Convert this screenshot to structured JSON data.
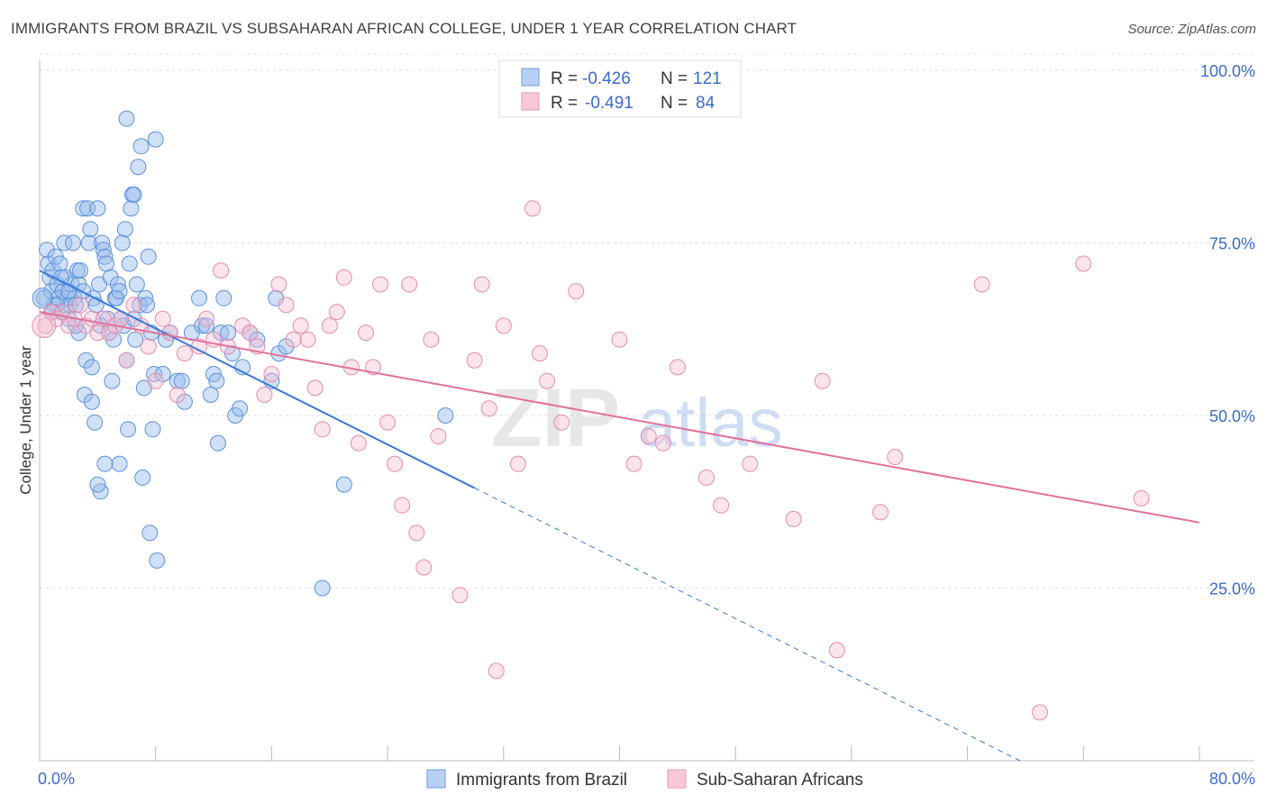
{
  "header": {
    "title": "IMMIGRANTS FROM BRAZIL VS SUBSAHARAN AFRICAN COLLEGE, UNDER 1 YEAR CORRELATION CHART",
    "source": "Source: ZipAtlas.com"
  },
  "watermark": {
    "zip": "ZIP",
    "atlas": "atlas"
  },
  "legend_top": {
    "rows": [
      {
        "r_label": "R =",
        "r_value": "-0.426",
        "n_label": "N =",
        "n_value": "121"
      },
      {
        "r_label": "R =",
        "r_value": "-0.491",
        "n_label": "N =",
        "n_value": "84"
      }
    ]
  },
  "colors": {
    "blue": "#3a78d4",
    "blue_fill": "#a9c6f0",
    "pink": "#e0729a",
    "pink_fill": "#f5bcd0",
    "axis_text": "#3a6cc8"
  },
  "chart_data": {
    "type": "scatter",
    "title": "IMMIGRANTS FROM BRAZIL VS SUBSAHARAN AFRICAN COLLEGE, UNDER 1 YEAR CORRELATION CHART",
    "xlabel": "",
    "ylabel": "College, Under 1 year",
    "xlim": [
      0,
      80
    ],
    "ylim": [
      0,
      100
    ],
    "x_tick_labels": [
      "0.0%",
      "80.0%"
    ],
    "y_tick_labels": [
      "100.0%",
      "75.0%",
      "50.0%",
      "25.0%"
    ],
    "y_ticks": [
      100,
      75,
      50,
      25
    ],
    "grid": true,
    "legend_position": "bottom",
    "series": [
      {
        "name": "Immigrants from Brazil",
        "color": "#3a78d4",
        "trend": {
          "x0": 0,
          "y0": 71.0,
          "x1": 30,
          "y1": 39.5,
          "dashed_to_x": 80
        },
        "points": [
          [
            0.3,
            67
          ],
          [
            0.5,
            74
          ],
          [
            0.6,
            72
          ],
          [
            0.7,
            70
          ],
          [
            0.8,
            68
          ],
          [
            0.9,
            71
          ],
          [
            1.0,
            66
          ],
          [
            1.1,
            73
          ],
          [
            1.2,
            69
          ],
          [
            1.3,
            67
          ],
          [
            1.4,
            72
          ],
          [
            1.5,
            65
          ],
          [
            1.6,
            68
          ],
          [
            1.7,
            75
          ],
          [
            1.8,
            70
          ],
          [
            1.9,
            67
          ],
          [
            2.0,
            64
          ],
          [
            2.1,
            66
          ],
          [
            2.2,
            69
          ],
          [
            2.3,
            75
          ],
          [
            2.4,
            67
          ],
          [
            2.5,
            63
          ],
          [
            2.6,
            71
          ],
          [
            2.7,
            69
          ],
          [
            2.8,
            71
          ],
          [
            3.0,
            80
          ],
          [
            3.1,
            53
          ],
          [
            3.2,
            58
          ],
          [
            3.3,
            80
          ],
          [
            3.4,
            75
          ],
          [
            3.5,
            77
          ],
          [
            3.6,
            57
          ],
          [
            3.7,
            67
          ],
          [
            3.8,
            49
          ],
          [
            3.9,
            66
          ],
          [
            4.0,
            80
          ],
          [
            4.1,
            69
          ],
          [
            4.2,
            63
          ],
          [
            4.3,
            75
          ],
          [
            4.4,
            74
          ],
          [
            4.5,
            73
          ],
          [
            4.6,
            72
          ],
          [
            4.7,
            64
          ],
          [
            4.8,
            62
          ],
          [
            4.9,
            70
          ],
          [
            5.0,
            55
          ],
          [
            5.1,
            61
          ],
          [
            5.2,
            67
          ],
          [
            5.3,
            67
          ],
          [
            5.4,
            69
          ],
          [
            5.5,
            68
          ],
          [
            5.6,
            64
          ],
          [
            5.7,
            75
          ],
          [
            5.8,
            63
          ],
          [
            5.9,
            77
          ],
          [
            6.0,
            58
          ],
          [
            6.1,
            48
          ],
          [
            6.2,
            72
          ],
          [
            6.3,
            80
          ],
          [
            6.4,
            82
          ],
          [
            6.5,
            82
          ],
          [
            6.6,
            61
          ],
          [
            6.7,
            69
          ],
          [
            6.8,
            86
          ],
          [
            6.9,
            66
          ],
          [
            7.0,
            89
          ],
          [
            7.1,
            41
          ],
          [
            7.2,
            54
          ],
          [
            7.3,
            67
          ],
          [
            7.4,
            66
          ],
          [
            7.5,
            73
          ],
          [
            7.6,
            33
          ],
          [
            7.7,
            62
          ],
          [
            7.8,
            48
          ],
          [
            7.9,
            56
          ],
          [
            8.0,
            90
          ],
          [
            8.1,
            29
          ],
          [
            8.5,
            56
          ],
          [
            8.7,
            61
          ],
          [
            9.0,
            62
          ],
          [
            9.5,
            55
          ],
          [
            9.8,
            55
          ],
          [
            10.0,
            52
          ],
          [
            10.5,
            62
          ],
          [
            11.0,
            67
          ],
          [
            11.2,
            63
          ],
          [
            11.5,
            63
          ],
          [
            11.8,
            53
          ],
          [
            12.0,
            56
          ],
          [
            12.2,
            55
          ],
          [
            12.3,
            46
          ],
          [
            12.5,
            62
          ],
          [
            12.7,
            67
          ],
          [
            13.0,
            62
          ],
          [
            13.3,
            59
          ],
          [
            13.5,
            50
          ],
          [
            13.8,
            51
          ],
          [
            14.0,
            57
          ],
          [
            14.5,
            62
          ],
          [
            15.0,
            61
          ],
          [
            16.0,
            55
          ],
          [
            16.3,
            67
          ],
          [
            16.5,
            59
          ],
          [
            17.0,
            60
          ],
          [
            19.5,
            25
          ],
          [
            21.0,
            40
          ],
          [
            28.0,
            50
          ],
          [
            5.5,
            43
          ],
          [
            4.5,
            43
          ],
          [
            4.2,
            39
          ],
          [
            4.0,
            40
          ],
          [
            3.6,
            52
          ],
          [
            2.7,
            62
          ],
          [
            1.2,
            66
          ],
          [
            0.9,
            65
          ],
          [
            1.5,
            70
          ],
          [
            2.0,
            68
          ],
          [
            2.5,
            66
          ],
          [
            3.0,
            68
          ],
          [
            6.0,
            93
          ],
          [
            6.5,
            64
          ]
        ]
      },
      {
        "name": "Sub-Saharan Africans",
        "color": "#e0729a",
        "trend": {
          "x0": 0,
          "y0": 65.0,
          "x1": 80,
          "y1": 34.5
        },
        "points": [
          [
            0.4,
            63
          ],
          [
            0.8,
            65
          ],
          [
            1.2,
            64
          ],
          [
            1.6,
            65
          ],
          [
            2.0,
            63
          ],
          [
            2.4,
            64
          ],
          [
            2.8,
            66
          ],
          [
            3.2,
            63
          ],
          [
            3.6,
            64
          ],
          [
            4.0,
            62
          ],
          [
            4.4,
            64
          ],
          [
            4.8,
            62
          ],
          [
            5.2,
            63
          ],
          [
            5.6,
            64
          ],
          [
            6.0,
            58
          ],
          [
            6.5,
            66
          ],
          [
            7.0,
            63
          ],
          [
            7.5,
            60
          ],
          [
            8.0,
            55
          ],
          [
            8.5,
            64
          ],
          [
            9.0,
            62
          ],
          [
            9.5,
            53
          ],
          [
            10.0,
            59
          ],
          [
            11.0,
            60
          ],
          [
            11.5,
            64
          ],
          [
            12.0,
            61
          ],
          [
            12.5,
            71
          ],
          [
            13.0,
            60
          ],
          [
            14.0,
            63
          ],
          [
            14.5,
            62
          ],
          [
            15.0,
            60
          ],
          [
            15.5,
            53
          ],
          [
            16.0,
            56
          ],
          [
            16.5,
            69
          ],
          [
            17.0,
            66
          ],
          [
            17.5,
            61
          ],
          [
            18.0,
            63
          ],
          [
            18.5,
            61
          ],
          [
            19.0,
            54
          ],
          [
            19.5,
            48
          ],
          [
            20.0,
            63
          ],
          [
            20.5,
            65
          ],
          [
            21.0,
            70
          ],
          [
            21.5,
            57
          ],
          [
            22.0,
            46
          ],
          [
            22.5,
            62
          ],
          [
            23.0,
            57
          ],
          [
            23.5,
            69
          ],
          [
            24.0,
            49
          ],
          [
            24.5,
            43
          ],
          [
            25.0,
            37
          ],
          [
            25.5,
            69
          ],
          [
            26.0,
            33
          ],
          [
            26.5,
            28
          ],
          [
            27.0,
            61
          ],
          [
            27.5,
            47
          ],
          [
            29.0,
            24
          ],
          [
            30.0,
            58
          ],
          [
            30.5,
            69
          ],
          [
            31.0,
            51
          ],
          [
            31.5,
            13
          ],
          [
            32.0,
            63
          ],
          [
            33.0,
            43
          ],
          [
            34.0,
            80
          ],
          [
            34.5,
            59
          ],
          [
            35.0,
            55
          ],
          [
            36.0,
            49
          ],
          [
            37.0,
            68
          ],
          [
            40.0,
            61
          ],
          [
            41.0,
            43
          ],
          [
            42.0,
            47
          ],
          [
            43.0,
            46
          ],
          [
            44.0,
            57
          ],
          [
            46.0,
            41
          ],
          [
            47.0,
            37
          ],
          [
            49.0,
            43
          ],
          [
            52.0,
            35
          ],
          [
            54.0,
            55
          ],
          [
            55.0,
            16
          ],
          [
            58.0,
            36
          ],
          [
            59.0,
            44
          ],
          [
            65.0,
            69
          ],
          [
            69.0,
            7
          ],
          [
            72.0,
            72
          ],
          [
            76.0,
            38
          ]
        ]
      }
    ]
  },
  "legend_bottom": {
    "items": [
      {
        "label": "Immigrants from Brazil"
      },
      {
        "label": "Sub-Saharan Africans"
      }
    ]
  }
}
